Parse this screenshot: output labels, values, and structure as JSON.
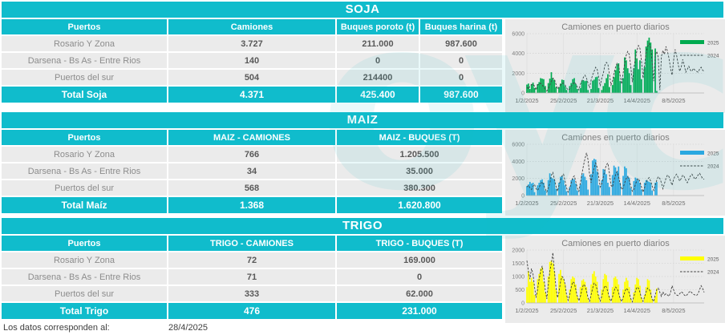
{
  "page": {
    "footer_label": "Los datos corresponden al:",
    "footer_date": "28/4/2025",
    "watermark": "oyc"
  },
  "colors": {
    "accent": "#10bccc",
    "soja_bar": "#00ab50",
    "maiz_bar": "#2ba8e0",
    "trigo_bar": "#ffff00",
    "line_2024": "#3f3f3f",
    "chart_bg": "#ebebeb",
    "row_bg": "#ebebeb"
  },
  "sections": [
    {
      "id": "soja",
      "title": "SOJA",
      "columns": [
        "Puertos",
        "Camiones",
        "Buques poroto (t)",
        "Buques harina (t)"
      ],
      "rows": [
        {
          "label": "Rosario Y Zona",
          "values": [
            "3.727",
            "211.000",
            "987.600"
          ]
        },
        {
          "label": "Darsena - Bs As - Entre Rios",
          "values": [
            "140",
            "0",
            "0"
          ]
        },
        {
          "label": "Puertos del sur",
          "values": [
            "504",
            "214400",
            "0"
          ]
        }
      ],
      "total": {
        "label": "Total Soja",
        "values": [
          "4.371",
          "425.400",
          "987.600"
        ]
      }
    },
    {
      "id": "maiz",
      "title": "MAIZ",
      "columns": [
        "Puertos",
        "MAIZ - CAMIONES",
        "MAIZ - BUQUES (T)"
      ],
      "rows": [
        {
          "label": "Rosario Y Zona",
          "values": [
            "766",
            "1.205.500"
          ]
        },
        {
          "label": "Darsena - Bs As - Entre Rios",
          "values": [
            "34",
            "35.000"
          ]
        },
        {
          "label": "Puertos del sur",
          "values": [
            "568",
            "380.300"
          ]
        }
      ],
      "total": {
        "label": "Total Maíz",
        "values": [
          "1.368",
          "1.620.800"
        ]
      }
    },
    {
      "id": "trigo",
      "title": "TRIGO",
      "columns": [
        "Puertos",
        "TRIGO - CAMIONES",
        "TRIGO - BUQUES (T)"
      ],
      "rows": [
        {
          "label": "Rosario Y Zona",
          "values": [
            "72",
            "169.000"
          ]
        },
        {
          "label": "Darsena - Bs As - Entre Rios",
          "values": [
            "71",
            "0"
          ]
        },
        {
          "label": "Puertos del sur",
          "values": [
            "333",
            "62.000"
          ]
        }
      ],
      "total": {
        "label": "Total Trigo",
        "values": [
          "476",
          "231.000"
        ]
      }
    }
  ],
  "chart_data": [
    {
      "id": "soja",
      "type": "bar",
      "title": "Camiones en puerto diarios",
      "xlabel": "",
      "ylabel": "",
      "ylim": [
        0,
        6000
      ],
      "yticks": [
        0,
        2000,
        4000,
        6000
      ],
      "x_ticks": [
        "1/2/2025",
        "25/2/2025",
        "21/3/2025",
        "14/4/2025",
        "8/5/2025"
      ],
      "tick_days": [
        0,
        24,
        48,
        72,
        96
      ],
      "n_days": 117,
      "grid": true,
      "legend_position": "right",
      "series": [
        {
          "name": "2025",
          "type": "bar",
          "color": "#00ab50",
          "values": [
            850,
            950,
            400,
            900,
            1050,
            500,
            0,
            900,
            1100,
            1500,
            1450,
            1400,
            700,
            0,
            1000,
            1450,
            2100,
            1500,
            1300,
            600,
            0,
            600,
            950,
            1350,
            1300,
            700,
            300,
            0,
            700,
            1000,
            1400,
            1500,
            900,
            400,
            0,
            500,
            1250,
            1300,
            1200,
            1250,
            300,
            0,
            400,
            1250,
            1350,
            1600,
            1650,
            500,
            0,
            300,
            700,
            1000,
            1500,
            1900,
            600,
            0,
            800,
            1600,
            2300,
            2900,
            3000,
            1200,
            0,
            1500,
            3600,
            3300,
            2500,
            2000,
            800,
            0,
            2500,
            4400,
            3500,
            2400,
            3300,
            1400,
            0,
            2600,
            4700,
            5300,
            5600,
            5100,
            4400,
            0,
            4500,
            200,
            0
          ]
        },
        {
          "name": "2024",
          "type": "line",
          "style": "dashed",
          "color": "#3f3f3f",
          "values": [
            600,
            400,
            700,
            850,
            900,
            700,
            300,
            800,
            900,
            1000,
            800,
            600,
            400,
            200,
            500,
            800,
            1200,
            1500,
            1400,
            900,
            400,
            600,
            800,
            950,
            1000,
            800,
            500,
            300,
            400,
            700,
            900,
            1100,
            900,
            600,
            300,
            900,
            1200,
            1600,
            1800,
            1500,
            1000,
            500,
            1300,
            1800,
            2200,
            2600,
            2400,
            1600,
            700,
            1500,
            2000,
            2800,
            3100,
            2900,
            1900,
            800,
            1200,
            2000,
            2600,
            3000,
            2800,
            1800,
            900,
            2000,
            3000,
            3800,
            4200,
            3900,
            2600,
            1100,
            2500,
            3500,
            4300,
            4800,
            4500,
            3200,
            1500,
            2800,
            4000,
            4700,
            5000,
            4600,
            3000,
            1200,
            3800,
            4200,
            3600,
            300,
            3700,
            4300,
            3900,
            4700,
            4200,
            3500,
            2500,
            1800,
            3300,
            4400,
            3800,
            2900,
            2200,
            2600,
            3400,
            2800,
            2100,
            2400,
            2700,
            2300,
            2200,
            2500,
            2300,
            2200,
            2100,
            2400,
            2600,
            2300,
            2200
          ]
        }
      ]
    },
    {
      "id": "maiz",
      "type": "bar",
      "title": "Camiones en puerto diarios",
      "xlabel": "",
      "ylabel": "",
      "ylim": [
        0,
        6000
      ],
      "yticks": [
        0,
        2000,
        4000,
        6000
      ],
      "x_ticks": [
        "1/2/2025",
        "25/2/2025",
        "21/3/2025",
        "14/4/2025",
        "8/5/2025"
      ],
      "tick_days": [
        0,
        24,
        48,
        72,
        96
      ],
      "n_days": 117,
      "grid": true,
      "legend_position": "right",
      "series": [
        {
          "name": "2025",
          "type": "bar",
          "color": "#2ba8e0",
          "values": [
            1100,
            1300,
            1600,
            1400,
            1500,
            400,
            0,
            1200,
            1500,
            1800,
            1900,
            1500,
            600,
            0,
            1800,
            2600,
            2100,
            2000,
            1900,
            800,
            0,
            1500,
            2200,
            2300,
            1800,
            1200,
            500,
            0,
            1000,
            1800,
            2000,
            1900,
            1400,
            600,
            0,
            1300,
            2400,
            2600,
            2200,
            1800,
            700,
            0,
            2500,
            4100,
            4300,
            4200,
            2800,
            1200,
            0,
            1800,
            3100,
            3000,
            2500,
            1500,
            1000,
            0,
            2400,
            3500,
            3300,
            2800,
            3400,
            1500,
            0,
            2300,
            3400,
            3200,
            2300,
            2100,
            900,
            0,
            1700,
            2100,
            2000,
            1800,
            1500,
            700,
            0,
            1500,
            1800,
            1700,
            1600,
            1500,
            600,
            0,
            1500,
            1600,
            0
          ]
        },
        {
          "name": "2024",
          "type": "line",
          "style": "dashed",
          "color": "#3f3f3f",
          "values": [
            1000,
            1200,
            900,
            700,
            1100,
            1300,
            800,
            600,
            900,
            1400,
            1600,
            1200,
            800,
            400,
            900,
            1400,
            2400,
            2700,
            1900,
            1100,
            500,
            1200,
            1800,
            2300,
            2500,
            1700,
            900,
            400,
            800,
            1500,
            2100,
            2300,
            1600,
            900,
            500,
            1500,
            2500,
            3500,
            4300,
            5000,
            4200,
            2500,
            1500,
            2500,
            3200,
            3800,
            3300,
            2200,
            1000,
            1400,
            2200,
            3000,
            3600,
            3800,
            2600,
            1200,
            1000,
            1800,
            2400,
            2800,
            2200,
            1400,
            700,
            900,
            1500,
            2000,
            2200,
            1800,
            1100,
            500,
            700,
            1300,
            1800,
            2000,
            1600,
            1000,
            400,
            900,
            1500,
            1900,
            2100,
            1700,
            1100,
            600,
            1200,
            1800,
            2200,
            2000,
            1500,
            800,
            1400,
            2000,
            2400,
            2200,
            1700,
            1200,
            1900,
            2300,
            2500,
            2100,
            1700,
            2000,
            2400,
            2200,
            1800,
            1500,
            1900,
            2300,
            2500,
            2200,
            1900,
            2100,
            2400,
            2600,
            2300,
            2000,
            1900
          ]
        }
      ]
    },
    {
      "id": "trigo",
      "type": "bar",
      "title": "Camiones en puerto diarios",
      "xlabel": "",
      "ylabel": "",
      "ylim": [
        0,
        2000
      ],
      "yticks": [
        0,
        500,
        1000,
        1500,
        2000
      ],
      "x_ticks": [
        "1/2/2025",
        "25/2/2025",
        "21/3/2025",
        "14/4/2025",
        "8/5/2025"
      ],
      "tick_days": [
        0,
        24,
        48,
        72,
        96
      ],
      "n_days": 117,
      "grid": true,
      "legend_position": "right",
      "series": [
        {
          "name": "2025",
          "type": "bar",
          "color": "#ffff00",
          "values": [
            600,
            1200,
            800,
            950,
            800,
            300,
            0,
            900,
            1100,
            1300,
            1350,
            800,
            400,
            0,
            1000,
            1550,
            1600,
            1500,
            1200,
            500,
            0,
            1100,
            1250,
            1000,
            900,
            700,
            300,
            0,
            500,
            900,
            1000,
            950,
            700,
            250,
            0,
            600,
            850,
            900,
            800,
            600,
            200,
            0,
            700,
            1100,
            1200,
            1000,
            800,
            300,
            0,
            500,
            900,
            1100,
            1050,
            800,
            250,
            0,
            600,
            950,
            1000,
            900,
            700,
            200,
            0,
            500,
            800,
            950,
            850,
            600,
            150,
            0,
            400,
            700,
            950,
            900,
            650,
            200,
            0,
            300,
            600,
            900,
            850,
            500,
            150,
            0,
            250,
            550,
            0
          ]
        },
        {
          "name": "2024",
          "type": "line",
          "style": "dashed",
          "color": "#3f3f3f",
          "values": [
            1600,
            1200,
            900,
            1300,
            1100,
            600,
            200,
            500,
            900,
            1200,
            1400,
            1000,
            500,
            150,
            700,
            1200,
            1500,
            1900,
            1200,
            600,
            200,
            400,
            800,
            1000,
            950,
            700,
            300,
            100,
            300,
            600,
            800,
            750,
            500,
            250,
            80,
            250,
            500,
            700,
            650,
            450,
            200,
            60,
            300,
            550,
            750,
            700,
            500,
            220,
            70,
            250,
            500,
            650,
            600,
            420,
            180,
            60,
            220,
            450,
            600,
            550,
            400,
            160,
            50,
            200,
            400,
            550,
            500,
            380,
            150,
            40,
            250,
            450,
            600,
            560,
            400,
            170,
            60,
            220,
            420,
            560,
            520,
            380,
            140,
            50,
            300,
            500,
            560,
            400,
            250,
            420,
            300,
            350,
            300,
            250,
            400,
            650,
            500,
            350,
            300,
            280,
            350,
            420,
            380,
            300,
            260,
            320,
            400,
            450,
            380,
            330,
            300,
            280,
            350,
            500,
            650,
            550,
            400
          ]
        }
      ]
    }
  ]
}
